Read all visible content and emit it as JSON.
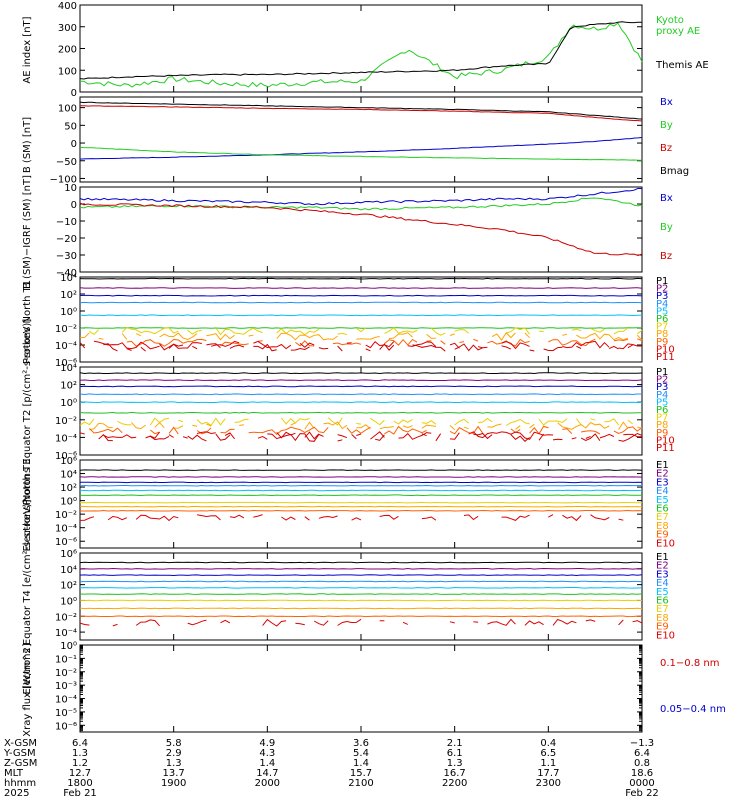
{
  "colors": {
    "ae_proxy": "#22cc22",
    "ae_themis": "#000000",
    "bx": "#0000cc",
    "by": "#22cc22",
    "bz": "#cc0000",
    "bmag": "#000000",
    "xray_long": "#cc0000",
    "xray_short": "#0000cc",
    "channels": [
      "#000000",
      "#800080",
      "#0000cc",
      "#1e90ff",
      "#00bfff",
      "#20c020",
      "#e8d000",
      "#ffa500",
      "#ff6000",
      "#dd0000",
      "#cc0000"
    ]
  },
  "time_axis": {
    "start": "2025-02-21 18:00",
    "end": "2025-02-22 00:00"
  },
  "panels": {
    "ae": {
      "ylabel": "AE index [nT]",
      "ticks": [
        "400",
        "300",
        "200",
        "100",
        "0"
      ],
      "legend": [
        {
          "text": "Kyoto proxy AE",
          "color": "#22cc22"
        },
        {
          "text": "Themis AE",
          "color": "#000000"
        }
      ]
    },
    "bsm": {
      "ylabel": "B (SM) [nT]",
      "ticks": [
        "100",
        "50",
        "0",
        "−50",
        "−100"
      ],
      "legend": [
        {
          "text": "Bx",
          "color": "#0000cc"
        },
        {
          "text": "By",
          "color": "#22cc22"
        },
        {
          "text": "Bz",
          "color": "#cc0000"
        },
        {
          "text": "Bmag",
          "color": "#000000"
        }
      ]
    },
    "bigrf": {
      "ylabel": "B (SM)−IGRF (SM) [nT]",
      "ticks": [
        "10",
        "0",
        "−10",
        "−20",
        "−30",
        "−40"
      ],
      "legend": [
        {
          "text": "Bx",
          "color": "#0000cc"
        },
        {
          "text": "By",
          "color": "#22cc22"
        },
        {
          "text": "Bz",
          "color": "#cc0000"
        }
      ]
    },
    "pn": {
      "ylabel": "Protons North T1",
      "ticks": [
        "10⁴",
        "10²",
        "10⁰",
        "10⁻²",
        "10⁻⁴",
        "10⁻⁶"
      ],
      "legend": [
        "P1",
        "P2",
        "P3",
        "P4",
        "P5",
        "P6",
        "P7",
        "P8",
        "P9",
        "P10",
        "P11"
      ]
    },
    "pe": {
      "ylabel": "Protons Equator T2 [p/(cm²-s-sr-keV)]",
      "ticks": [
        "10⁴",
        "10²",
        "10⁰",
        "10⁻²",
        "10⁻⁴",
        "10⁻⁶"
      ],
      "legend": [
        "P1",
        "P2",
        "P3",
        "P4",
        "P5",
        "P6",
        "P7",
        "P8",
        "P9",
        "P10",
        "P11"
      ]
    },
    "en": {
      "ylabel": "Electrons North T3",
      "ticks": [
        "10⁶",
        "10⁴",
        "10²",
        "10⁰",
        "10⁻²",
        "10⁻⁴",
        "10⁻⁶"
      ],
      "legend": [
        "E1",
        "E2",
        "E3",
        "E4",
        "E5",
        "E6",
        "E7",
        "E8",
        "E9",
        "E10"
      ]
    },
    "ee": {
      "ylabel": "Electrons Equator T4 [e/(cm²-s-sr-keV)]",
      "ticks": [
        "10⁶",
        "10⁴",
        "10²",
        "10⁰",
        "10⁻²",
        "10⁻⁴"
      ],
      "legend": [
        "E1",
        "E2",
        "E3",
        "E4",
        "E5",
        "E6",
        "E7",
        "E8",
        "E9",
        "E10"
      ]
    },
    "xray": {
      "ylabel": "Xray flux [W/m^2]",
      "ticks": [
        "10⁰",
        "10⁻¹",
        "10⁻²",
        "10⁻³",
        "10⁻⁴",
        "10⁻⁵",
        "10⁻⁶"
      ],
      "legend": [
        {
          "text": "0.1−0.8 nm",
          "color": "#cc0000"
        },
        {
          "text": "0.05−0.4 nm",
          "color": "#0000cc"
        }
      ]
    }
  },
  "ephemeris": {
    "labels": [
      "X-GSM",
      "Y-GSM",
      "Z-GSM",
      "MLT",
      "hhmm",
      "2025"
    ],
    "columns": [
      [
        "6.4",
        "1.3",
        "1.2",
        "12.7",
        "1800",
        "Feb 21"
      ],
      [
        "5.8",
        "2.9",
        "1.3",
        "13.7",
        "1900",
        ""
      ],
      [
        "4.9",
        "4.3",
        "1.4",
        "14.7",
        "2000",
        ""
      ],
      [
        "3.6",
        "5.4",
        "1.4",
        "15.7",
        "2100",
        ""
      ],
      [
        "2.1",
        "6.1",
        "1.3",
        "16.7",
        "2200",
        ""
      ],
      [
        "0.4",
        "6.5",
        "1.1",
        "17.7",
        "2300",
        ""
      ],
      [
        "−1.3",
        "6.4",
        "0.8",
        "18.6",
        "0000",
        "Feb 22"
      ]
    ]
  },
  "chart_data": [
    {
      "type": "line",
      "title": "",
      "ylabel": "AE index [nT]",
      "ylim": [
        0,
        400
      ],
      "x": [
        "18:00",
        "18:30",
        "19:00",
        "19:30",
        "20:00",
        "20:30",
        "21:00",
        "21:30",
        "22:00",
        "22:30",
        "23:00",
        "23:15",
        "23:30",
        "23:45",
        "24:00"
      ],
      "series": [
        {
          "name": "Kyoto proxy AE",
          "values": [
            50,
            30,
            60,
            40,
            30,
            45,
            50,
            200,
            70,
            100,
            160,
            310,
            290,
            320,
            140
          ]
        },
        {
          "name": "Themis AE",
          "values": [
            60,
            70,
            75,
            80,
            80,
            85,
            90,
            95,
            100,
            120,
            130,
            300,
            310,
            320,
            320
          ]
        }
      ]
    },
    {
      "type": "line",
      "ylabel": "B (SM) [nT]",
      "ylim": [
        -110,
        130
      ],
      "x": [
        "18:00",
        "19:00",
        "20:00",
        "21:00",
        "22:00",
        "23:00",
        "23:30",
        "24:00"
      ],
      "series": [
        {
          "name": "Bx",
          "values": [
            -45,
            -40,
            -33,
            -25,
            -15,
            -3,
            5,
            15
          ]
        },
        {
          "name": "By",
          "values": [
            -12,
            -25,
            -33,
            -38,
            -42,
            -45,
            -47,
            -48
          ]
        },
        {
          "name": "Bz",
          "values": [
            105,
            102,
            98,
            95,
            90,
            84,
            72,
            62
          ]
        },
        {
          "name": "Bmag",
          "values": [
            115,
            110,
            105,
            100,
            95,
            88,
            78,
            68
          ]
        }
      ]
    },
    {
      "type": "line",
      "ylabel": "B (SM)−IGRF (SM) [nT]",
      "ylim": [
        -40,
        10
      ],
      "x": [
        "18:00",
        "19:00",
        "20:00",
        "20:30",
        "21:00",
        "22:00",
        "22:30",
        "23:00",
        "23:30",
        "24:00"
      ],
      "series": [
        {
          "name": "Bx",
          "values": [
            3,
            2,
            1,
            0,
            1,
            2,
            3,
            3,
            6,
            9
          ]
        },
        {
          "name": "By",
          "values": [
            -2,
            -1,
            -2,
            -2,
            -3,
            -2,
            -1,
            0,
            4,
            -1
          ]
        },
        {
          "name": "Bz",
          "values": [
            0,
            -1,
            -2,
            -4,
            -6,
            -12,
            -15,
            -20,
            -29,
            -30
          ]
        }
      ]
    },
    {
      "type": "line",
      "ylabel": "Protons North T1",
      "ylim": [
        -6,
        4
      ],
      "series": [
        {
          "name": "P1",
          "log10": 3.8
        },
        {
          "name": "P2",
          "log10": 2.7
        },
        {
          "name": "P3",
          "log10": 1.8
        },
        {
          "name": "P4",
          "log10": 1.0
        },
        {
          "name": "P5",
          "log10": -0.5
        },
        {
          "name": "P6",
          "log10": -2.0
        },
        {
          "name": "P7",
          "log10": -2.4
        },
        {
          "name": "P8",
          "log10": -3.0
        },
        {
          "name": "P9",
          "log10": -3.7
        },
        {
          "name": "P10",
          "log10": -4.0
        },
        {
          "name": "P11",
          "log10": -4.3
        }
      ]
    },
    {
      "type": "line",
      "ylabel": "Protons Equator T2 [p/(cm²-s-sr-keV)]",
      "ylim": [
        -6,
        4
      ],
      "series": [
        {
          "name": "P1",
          "log10": 3.3
        },
        {
          "name": "P2",
          "log10": 2.5
        },
        {
          "name": "P3",
          "log10": 1.8
        },
        {
          "name": "P4",
          "log10": 0.9
        },
        {
          "name": "P5",
          "log10": 0.0
        },
        {
          "name": "P6",
          "log10": -1.2
        },
        {
          "name": "P7",
          "log10": -2.2
        },
        {
          "name": "P8",
          "log10": -2.7
        },
        {
          "name": "P9",
          "log10": -3.2
        },
        {
          "name": "P10",
          "log10": -3.8
        },
        {
          "name": "P11",
          "log10": -4.0
        }
      ]
    },
    {
      "type": "line",
      "ylabel": "Electrons North T3",
      "ylim": [
        -7,
        6
      ],
      "series": [
        {
          "name": "E1",
          "log10": 4.5
        },
        {
          "name": "E2",
          "log10": 3.5
        },
        {
          "name": "E3",
          "log10": 2.7
        },
        {
          "name": "E4",
          "log10": 2.2
        },
        {
          "name": "E5",
          "log10": 1.5
        },
        {
          "name": "E6",
          "log10": 0.8
        },
        {
          "name": "E7",
          "log10": -0.3
        },
        {
          "name": "E8",
          "log10": -0.9
        },
        {
          "name": "E9",
          "log10": -1.5
        },
        {
          "name": "E10",
          "log10": -2.5
        }
      ]
    },
    {
      "type": "line",
      "ylabel": "Electrons Equator T4 [e/(cm²-s-sr-keV)]",
      "ylim": [
        -5,
        6
      ],
      "series": [
        {
          "name": "E1",
          "log10": 4.8
        },
        {
          "name": "E2",
          "log10": 4.0
        },
        {
          "name": "E3",
          "log10": 3.2
        },
        {
          "name": "E4",
          "log10": 2.4
        },
        {
          "name": "E5",
          "log10": 1.6
        },
        {
          "name": "E6",
          "log10": 0.8
        },
        {
          "name": "E7",
          "log10": 0.0
        },
        {
          "name": "E8",
          "log10": -1.0
        },
        {
          "name": "E9",
          "log10": -2.0
        },
        {
          "name": "E10",
          "log10": -2.8
        }
      ]
    },
    {
      "type": "line",
      "ylabel": "Xray flux [W/m^2]",
      "ylim": [
        -6.5,
        0
      ],
      "series": [
        {
          "name": "0.1−0.8 nm",
          "values": []
        },
        {
          "name": "0.05−0.4 nm",
          "values": []
        }
      ]
    }
  ]
}
